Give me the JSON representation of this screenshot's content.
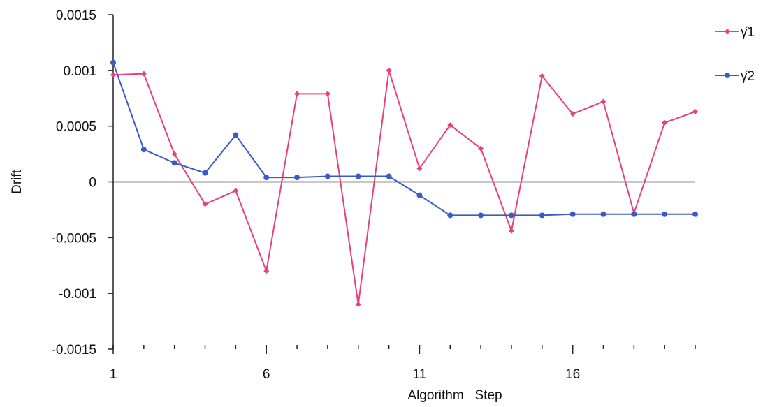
{
  "chart_data": {
    "type": "line",
    "title": "",
    "xlabel": "Algorithm   Step",
    "ylabel": "Drift",
    "x": [
      1,
      2,
      3,
      4,
      5,
      6,
      7,
      8,
      9,
      10,
      11,
      12,
      13,
      14,
      15,
      16,
      17,
      18,
      19,
      20
    ],
    "xlim": [
      1,
      20
    ],
    "x_ticks": [
      1,
      6,
      11,
      16
    ],
    "x_tick_labels": [
      "1",
      "6",
      "11",
      "16"
    ],
    "ylim": [
      -0.0015,
      0.0015
    ],
    "y_ticks": [
      0.0015,
      0.001,
      0.0005,
      0,
      -0.0005,
      -0.001,
      -0.0015
    ],
    "y_tick_labels": [
      "0.0015",
      "0.001",
      "0.0005",
      "0",
      "-0.0005",
      "-0.001",
      "-0.0015"
    ],
    "grid": false,
    "legend_position": "top-right",
    "series": [
      {
        "name": "γ̂1",
        "color": "#e8407a",
        "marker": "diamond",
        "values": [
          0.00096,
          0.00097,
          0.00025,
          -0.0002,
          -8e-05,
          -0.0008,
          0.00079,
          0.00079,
          -0.0011,
          0.001,
          0.00012,
          0.00051,
          0.0003,
          -0.00044,
          0.00095,
          0.00061,
          0.00072,
          -0.00028,
          0.00053,
          0.00063
        ]
      },
      {
        "name": "γ̂2",
        "color": "#3a5bc7",
        "marker": "circle",
        "values": [
          0.00107,
          0.00029,
          0.00017,
          8e-05,
          0.00042,
          4e-05,
          4e-05,
          5e-05,
          5e-05,
          5e-05,
          -0.00012,
          -0.0003,
          -0.0003,
          -0.0003,
          -0.0003,
          -0.00029,
          -0.00029,
          -0.00029,
          -0.00029,
          -0.00029
        ]
      }
    ]
  }
}
